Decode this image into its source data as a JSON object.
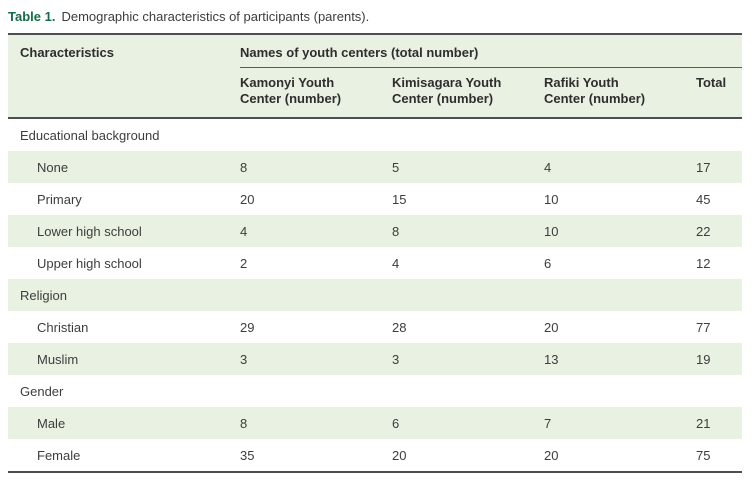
{
  "caption": {
    "label": "Table 1.",
    "text": "Demographic characteristics of participants (parents)."
  },
  "table": {
    "characteristics_header": "Characteristics",
    "group_header": "Names of youth centers (total number)",
    "columns": [
      "Kamonyi Youth Center (number)",
      "Kimisagara Youth Center (number)",
      "Rafiki Youth Center (number)",
      "Total"
    ],
    "sections": [
      {
        "name": "Educational background",
        "rows": [
          {
            "label": "None",
            "values": [
              "8",
              "5",
              "4",
              "17"
            ]
          },
          {
            "label": "Primary",
            "values": [
              "20",
              "15",
              "10",
              "45"
            ]
          },
          {
            "label": "Lower high school",
            "values": [
              "4",
              "8",
              "10",
              "22"
            ]
          },
          {
            "label": "Upper high school",
            "values": [
              "2",
              "4",
              "6",
              "12"
            ]
          }
        ]
      },
      {
        "name": "Religion",
        "rows": [
          {
            "label": "Christian",
            "values": [
              "29",
              "28",
              "20",
              "77"
            ]
          },
          {
            "label": "Muslim",
            "values": [
              "3",
              "3",
              "13",
              "19"
            ]
          }
        ]
      },
      {
        "name": "Gender",
        "rows": [
          {
            "label": "Male",
            "values": [
              "8",
              "6",
              "7",
              "21"
            ]
          },
          {
            "label": "Female",
            "values": [
              "35",
              "20",
              "20",
              "75"
            ]
          }
        ]
      }
    ]
  },
  "colors": {
    "caption_accent_green": "#136c45",
    "row_stripe_green": "#e9f1e2",
    "rule_dark": "#4d4d4d",
    "text_dark": "#3a3a3a"
  }
}
